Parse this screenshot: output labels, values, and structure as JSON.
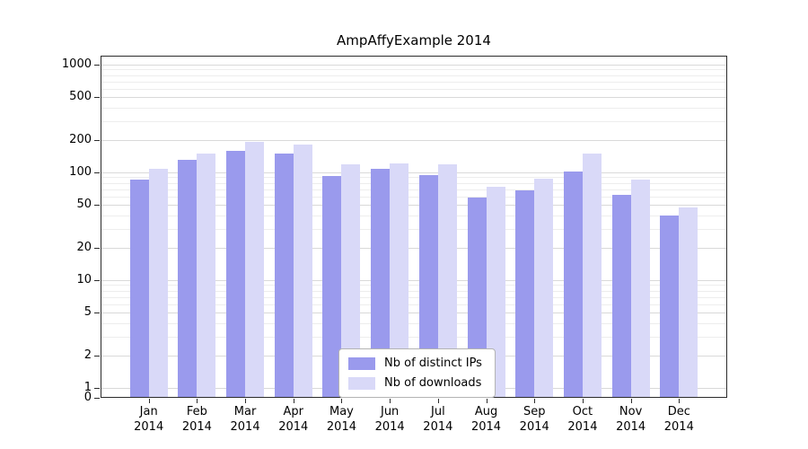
{
  "chart_data": {
    "type": "bar",
    "title": "AmpAffyExample 2014",
    "y_scale": "symlog",
    "grid": true,
    "legend_position": "bottom-center-inside",
    "ylim": [
      0,
      1000
    ],
    "y_ticks": [
      0,
      1,
      2,
      5,
      10,
      20,
      50,
      100,
      200,
      500,
      1000
    ],
    "categories": [
      "Jan 2014",
      "Feb 2014",
      "Mar 2014",
      "Apr 2014",
      "May 2014",
      "Jun 2014",
      "Jul 2014",
      "Aug 2014",
      "Sep 2014",
      "Oct 2014",
      "Nov 2014",
      "Dec 2014"
    ],
    "series": [
      {
        "name": "Nb of distinct IPs",
        "color": "#9a9aed",
        "values": [
          85,
          130,
          160,
          150,
          93,
          108,
          95,
          58,
          68,
          102,
          62,
          40
        ]
      },
      {
        "name": "Nb of downloads",
        "color": "#d9d9f8",
        "values": [
          107,
          150,
          192,
          180,
          118,
          122,
          118,
          73,
          88,
          150,
          85,
          47
        ]
      }
    ]
  }
}
